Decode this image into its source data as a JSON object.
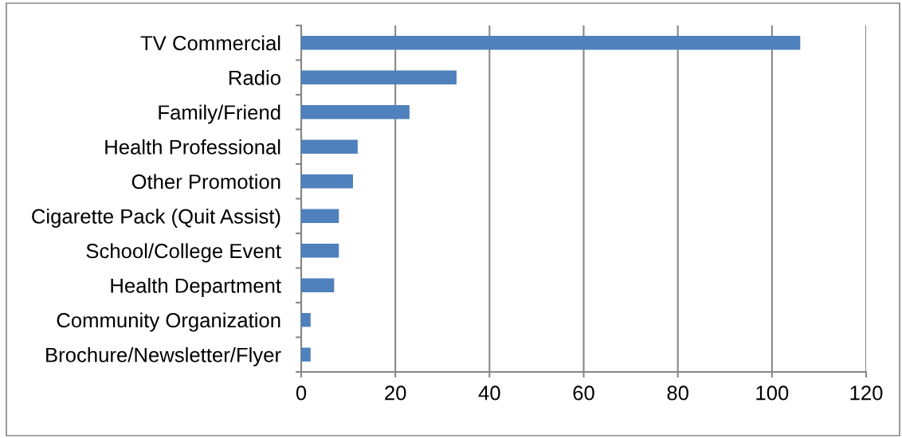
{
  "chart_data": {
    "type": "bar",
    "orientation": "horizontal",
    "categories": [
      "TV Commercial",
      "Radio",
      "Family/Friend",
      "Health Professional",
      "Other Promotion",
      "Cigarette Pack (Quit Assist)",
      "School/College Event",
      "Health Department",
      "Community Organization",
      "Brochure/Newsletter/Flyer"
    ],
    "values": [
      106,
      33,
      23,
      12,
      11,
      8,
      8,
      7,
      2,
      2
    ],
    "color": "#4f81bd",
    "xlim": [
      0,
      120
    ],
    "xticks": [
      0,
      20,
      40,
      60,
      80,
      100,
      120
    ],
    "grid": "x"
  }
}
